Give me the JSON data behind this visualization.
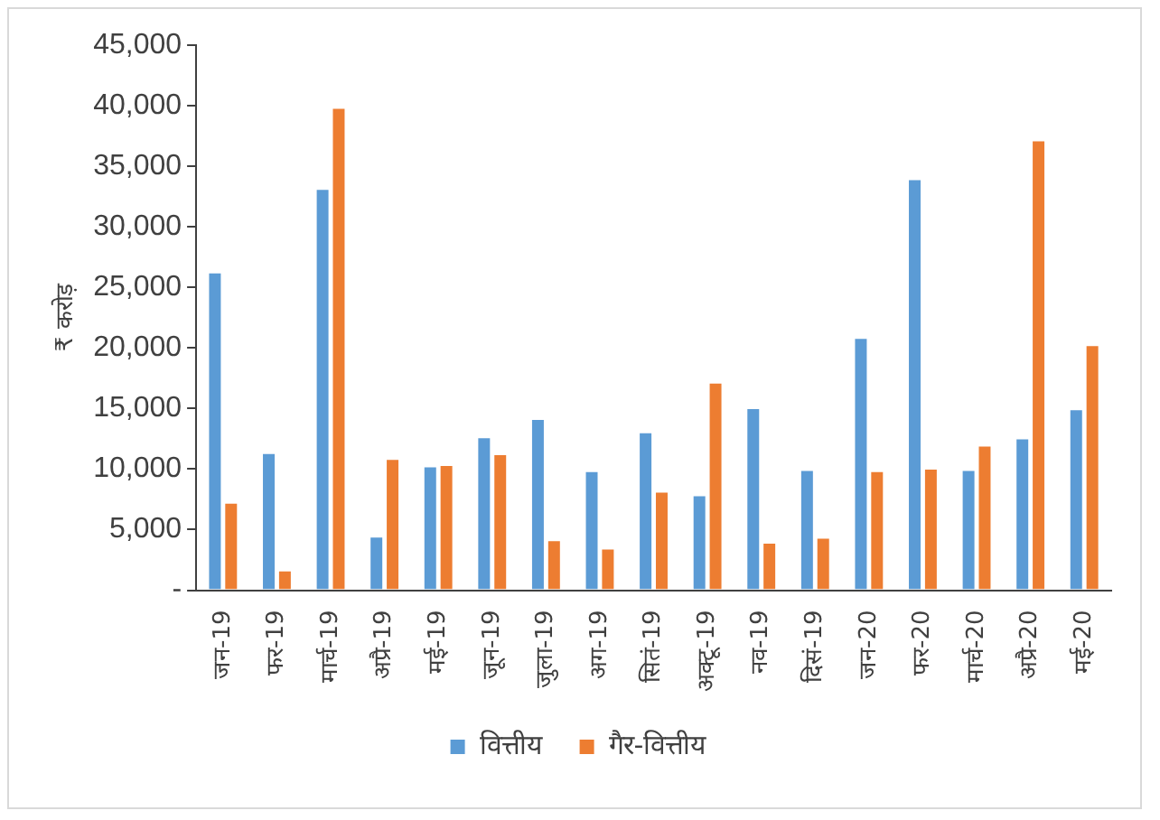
{
  "chart_data": {
    "type": "bar",
    "ylabel": "₹ करोड़",
    "categories": [
      "जन-19",
      "फर-19",
      "मार्च-19",
      "अप्रै-19",
      "मई-19",
      "जून-19",
      "जुला-19",
      "अग-19",
      "सितं-19",
      "अक्टू-19",
      "नव-19",
      "दिसं-19",
      "जन-20",
      "फर-20",
      "मार्च-20",
      "अप्रै-20",
      "मई-20"
    ],
    "series": [
      {
        "name": "वित्तीय",
        "color": "#5b9bd5",
        "values": [
          26300,
          11400,
          33200,
          4500,
          10300,
          12700,
          14200,
          9900,
          13100,
          7900,
          15100,
          10000,
          20900,
          34000,
          10000,
          12600,
          15000
        ]
      },
      {
        "name": "गैर-वित्तीय",
        "color": "#ed7d31",
        "values": [
          7300,
          1700,
          39900,
          10900,
          10400,
          11300,
          4200,
          3500,
          8200,
          17200,
          4000,
          4400,
          9900,
          10100,
          12000,
          37200,
          20300
        ]
      }
    ],
    "ylim": [
      0,
      45000
    ],
    "yticks": [
      {
        "value": 0,
        "label": "-"
      },
      {
        "value": 5000,
        "label": "5,000"
      },
      {
        "value": 10000,
        "label": "10,000"
      },
      {
        "value": 15000,
        "label": "15,000"
      },
      {
        "value": 20000,
        "label": "20,000"
      },
      {
        "value": 25000,
        "label": "25,000"
      },
      {
        "value": 30000,
        "label": "30,000"
      },
      {
        "value": 35000,
        "label": "35,000"
      },
      {
        "value": 40000,
        "label": "40,000"
      },
      {
        "value": 45000,
        "label": "45,000"
      }
    ],
    "grid": false,
    "legend": "bottom"
  }
}
